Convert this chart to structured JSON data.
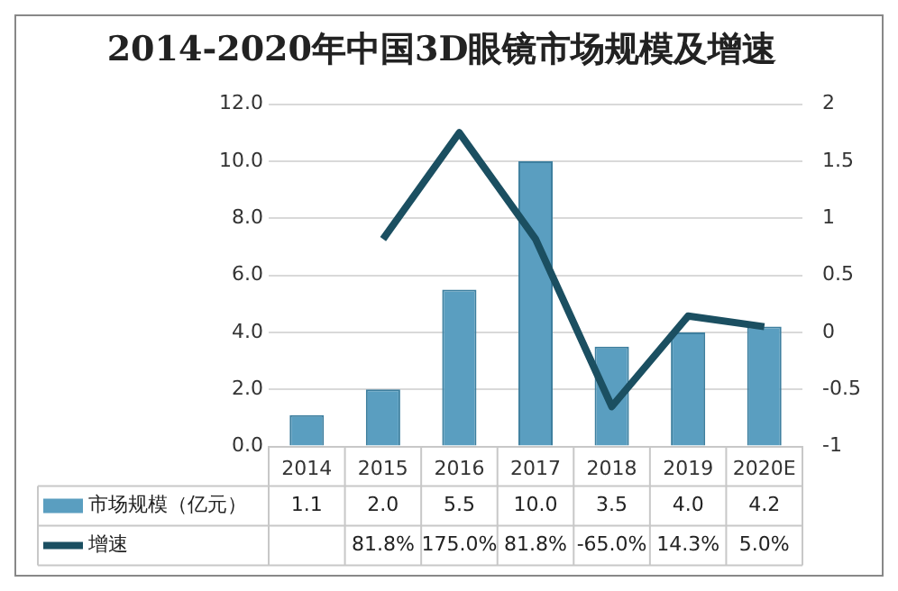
{
  "chart_data": {
    "type": "bar",
    "title": "2014-2020年中国3D眼镜市场规模及增速",
    "categories": [
      "2014",
      "2015",
      "2016",
      "2017",
      "2018",
      "2019",
      "2020E"
    ],
    "series": [
      {
        "name": "市场规模（亿元）",
        "color": "#5a9ec0",
        "values": [
          1.1,
          2.0,
          5.5,
          10.0,
          3.5,
          4.0,
          4.2
        ],
        "value_labels": [
          "1.1",
          "2.0",
          "5.5",
          "10.0",
          "3.5",
          "4.0",
          "4.2"
        ]
      },
      {
        "name": "增速",
        "type": "line",
        "axis": "y2",
        "color": "#1b4f61",
        "values": [
          null,
          0.818,
          1.75,
          0.818,
          -0.65,
          0.143,
          0.05
        ],
        "value_labels": [
          null,
          "81.8%",
          "175.0%",
          "81.8%",
          "-65.0%",
          "14.3%",
          "5.0%"
        ]
      }
    ],
    "ylim": [
      0,
      12
    ],
    "yticks": [
      {
        "value": 0,
        "label": "0.0"
      },
      {
        "value": 2,
        "label": "2.0"
      },
      {
        "value": 4,
        "label": "4.0"
      },
      {
        "value": 6,
        "label": "6.0"
      },
      {
        "value": 8,
        "label": "8.0"
      },
      {
        "value": 10,
        "label": "10.0"
      },
      {
        "value": 12,
        "label": "12.0"
      }
    ],
    "y2lim": [
      -1,
      2
    ],
    "y2ticks": [
      -1,
      -0.5,
      0,
      0.5,
      1,
      1.5,
      2
    ],
    "grid": "y",
    "legend": "bottom",
    "marker": "none"
  }
}
